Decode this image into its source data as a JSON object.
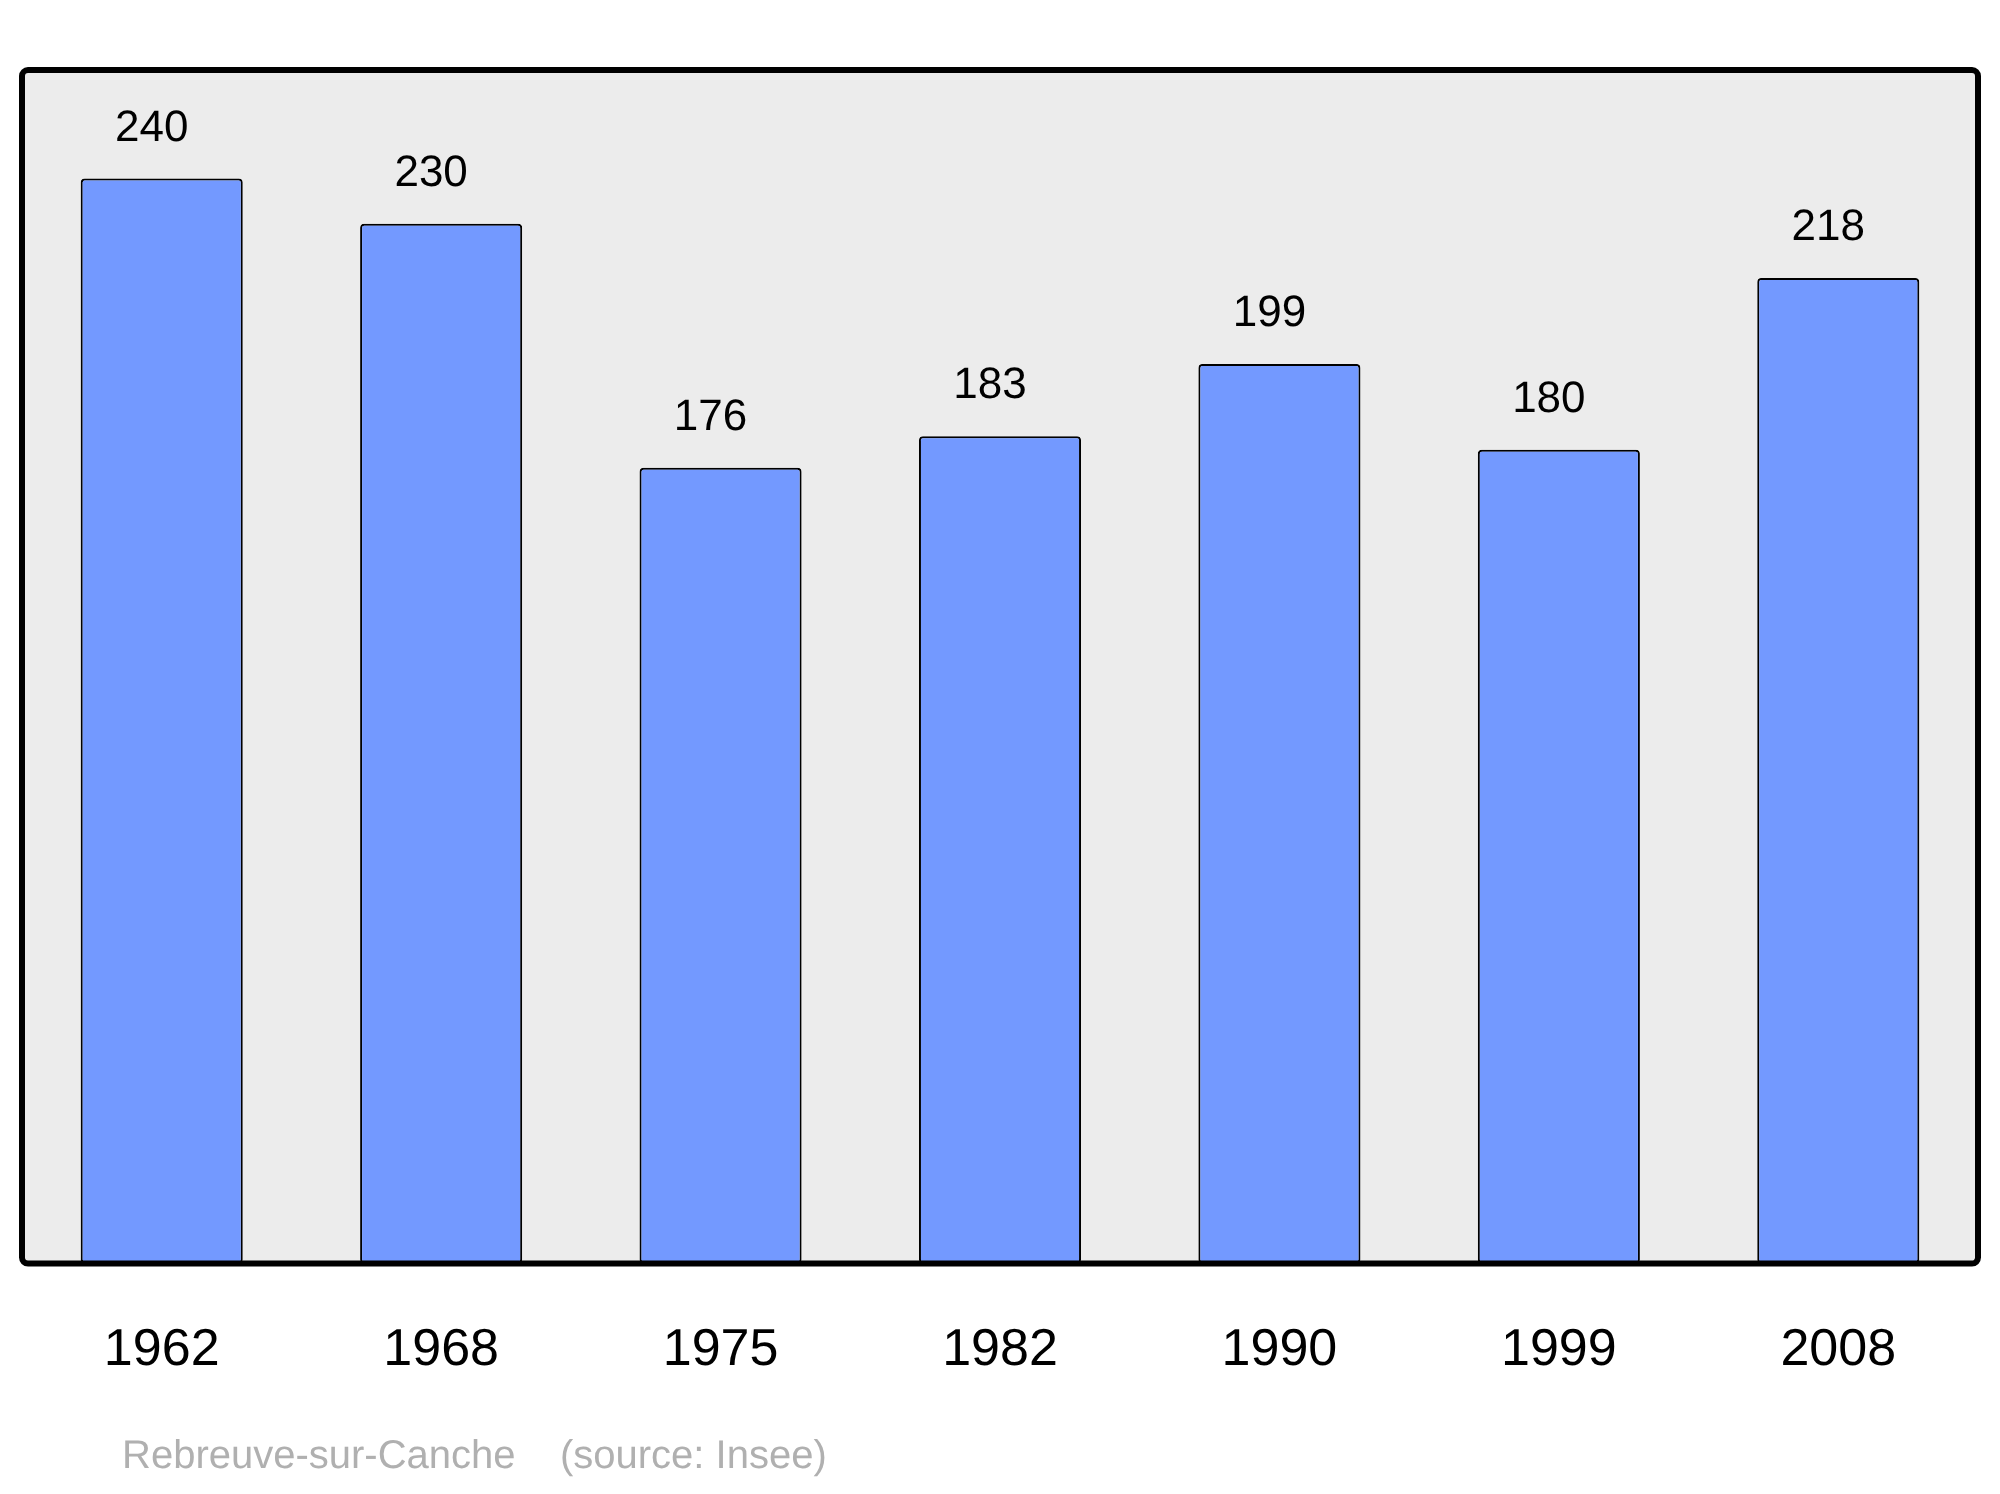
{
  "chart_data": {
    "type": "bar",
    "categories": [
      "1962",
      "1968",
      "1975",
      "1982",
      "1990",
      "1999",
      "2008"
    ],
    "values": [
      240,
      230,
      176,
      183,
      199,
      180,
      218
    ],
    "color": "#7399ff",
    "data_labels": true,
    "annotations": [
      "Rebreuve-sur-Canche    (source: Insee)"
    ]
  }
}
